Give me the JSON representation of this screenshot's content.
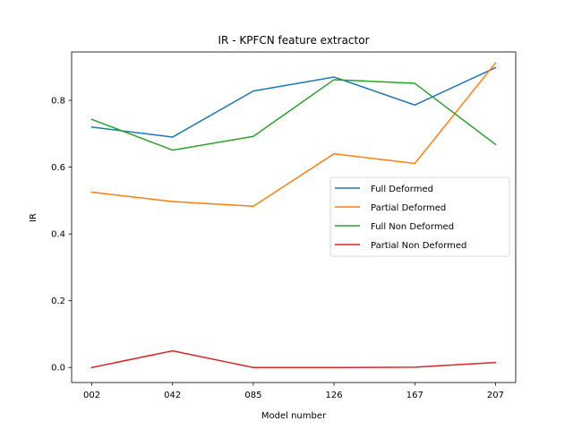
{
  "chart_data": {
    "type": "line",
    "title": "IR - KPFCN feature extractor",
    "xlabel": "Model number",
    "ylabel": "IR",
    "categories": [
      "002",
      "042",
      "085",
      "126",
      "167",
      "207"
    ],
    "yticks": [
      "0.0",
      "0.2",
      "0.4",
      "0.6",
      "0.8"
    ],
    "ylim": [
      -0.045,
      0.945
    ],
    "grid": false,
    "legend_position": "center-right",
    "series": [
      {
        "name": "Full Deformed",
        "color": "#1f77b4",
        "values": [
          0.72,
          0.69,
          0.828,
          0.87,
          0.786,
          0.898
        ]
      },
      {
        "name": "Partial Deformed",
        "color": "#ff7f0e",
        "values": [
          0.525,
          0.497,
          0.483,
          0.64,
          0.611,
          0.912
        ]
      },
      {
        "name": "Full Non Deformed",
        "color": "#2ca02c",
        "values": [
          0.743,
          0.651,
          0.692,
          0.862,
          0.851,
          0.668
        ]
      },
      {
        "name": "Partial Non Deformed",
        "color": "#d62728",
        "values": [
          0.0,
          0.05,
          0.0,
          0.0,
          0.001,
          0.015
        ]
      }
    ]
  }
}
